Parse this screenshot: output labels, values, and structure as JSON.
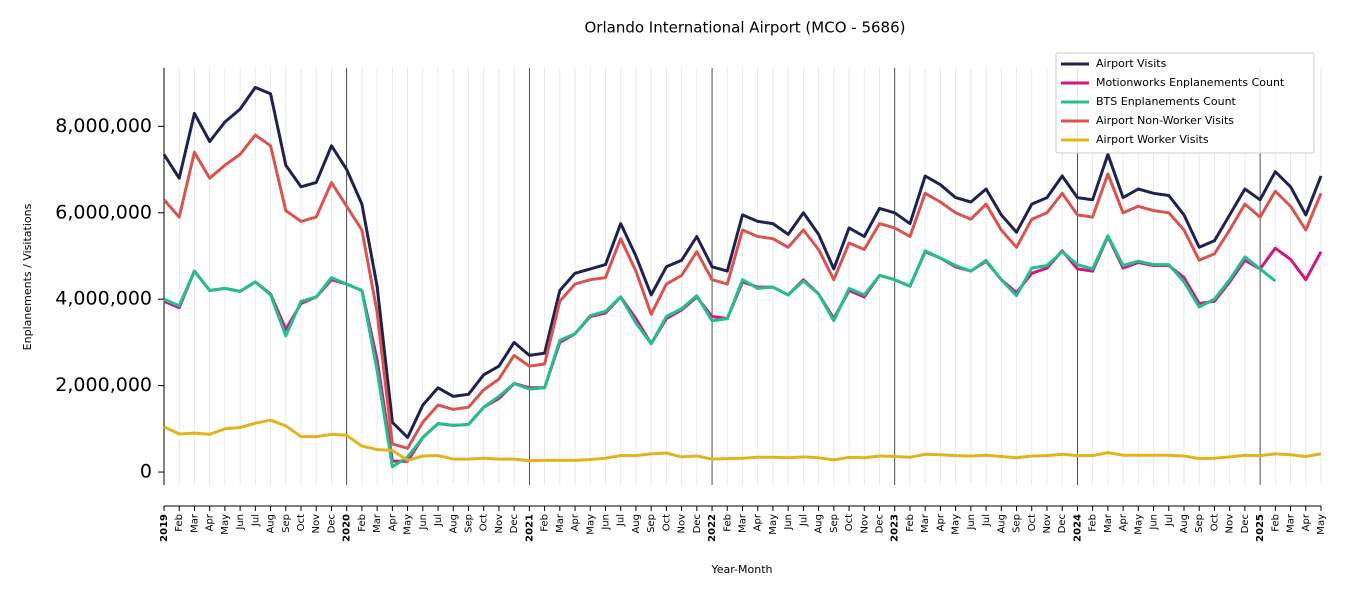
{
  "chart_data": {
    "type": "line",
    "title": "Orlando International Airport (MCO - 5686)",
    "x_label": "Year-Month",
    "y_label": "Enplanements / Visitations",
    "categories": [
      "2019",
      "Feb",
      "Mar",
      "Apr",
      "May",
      "Jun",
      "Jul",
      "Aug",
      "Sep",
      "Oct",
      "Nov",
      "Dec",
      "2020",
      "Feb",
      "Mar",
      "Apr",
      "May",
      "Jun",
      "Jul",
      "Aug",
      "Sep",
      "Oct",
      "Nov",
      "Dec",
      "2021",
      "Feb",
      "Mar",
      "Apr",
      "May",
      "Jun",
      "Jul",
      "Aug",
      "Sep",
      "Oct",
      "Nov",
      "Dec",
      "2022",
      "Feb",
      "Mar",
      "Apr",
      "May",
      "Jun",
      "Jul",
      "Aug",
      "Sep",
      "Oct",
      "Nov",
      "Dec",
      "2023",
      "Feb",
      "Mar",
      "Apr",
      "May",
      "Jun",
      "Jul",
      "Aug",
      "Sep",
      "Oct",
      "Nov",
      "Dec",
      "2024",
      "Feb",
      "Mar",
      "Apr",
      "May",
      "Jun",
      "Jul",
      "Aug",
      "Sep",
      "Oct",
      "Nov",
      "Dec",
      "2025",
      "Feb",
      "Mar",
      "Apr",
      "May"
    ],
    "series": [
      {
        "name": "Airport Visits",
        "color": "#1f2150",
        "values": [
          7350000,
          6800000,
          8300000,
          7650000,
          8100000,
          8400000,
          8900000,
          8750000,
          7100000,
          6600000,
          6700000,
          7550000,
          7000000,
          6200000,
          4300000,
          1150000,
          800000,
          1550000,
          1950000,
          1750000,
          1800000,
          2250000,
          2450000,
          3000000,
          2700000,
          2750000,
          4200000,
          4600000,
          4700000,
          4800000,
          5750000,
          5000000,
          4100000,
          4750000,
          4900000,
          5450000,
          4750000,
          4650000,
          5950000,
          5800000,
          5750000,
          5500000,
          6000000,
          5500000,
          4700000,
          5650000,
          5450000,
          6100000,
          6000000,
          5750000,
          6850000,
          6650000,
          6350000,
          6250000,
          6550000,
          5950000,
          5550000,
          6200000,
          6350000,
          6850000,
          6350000,
          6300000,
          7350000,
          6350000,
          6550000,
          6450000,
          6400000,
          5950000,
          5200000,
          5350000,
          5950000,
          6550000,
          6300000,
          6950000,
          6600000,
          5950000,
          6850000
        ]
      },
      {
        "name": "Motionworks Enplanements Count",
        "color": "#d0177f",
        "values": [
          3950000,
          3800000,
          4650000,
          4200000,
          4250000,
          4180000,
          4400000,
          4120000,
          3300000,
          3900000,
          4050000,
          4450000,
          4350000,
          4200000,
          2600000,
          250000,
          250000,
          800000,
          1120000,
          1080000,
          1100000,
          1500000,
          1700000,
          2050000,
          1950000,
          1950000,
          3000000,
          3200000,
          3600000,
          3680000,
          4050000,
          3550000,
          2970000,
          3550000,
          3750000,
          4050000,
          3600000,
          3550000,
          4400000,
          4280000,
          4280000,
          4100000,
          4450000,
          4120000,
          3550000,
          4200000,
          4050000,
          4550000,
          4450000,
          4300000,
          5100000,
          4950000,
          4750000,
          4650000,
          4880000,
          4450000,
          4150000,
          4600000,
          4720000,
          5120000,
          4700000,
          4650000,
          5450000,
          4720000,
          4850000,
          4780000,
          4780000,
          4500000,
          3900000,
          3950000,
          4400000,
          4900000,
          4700000,
          5180000,
          4920000,
          4450000,
          5100000
        ]
      },
      {
        "name": "BTS Enplanements Count",
        "color": "#22c08e",
        "values": [
          4000000,
          3850000,
          4650000,
          4200000,
          4250000,
          4180000,
          4400000,
          4100000,
          3150000,
          3950000,
          4050000,
          4500000,
          4350000,
          4200000,
          2350000,
          120000,
          350000,
          800000,
          1120000,
          1080000,
          1100000,
          1500000,
          1750000,
          2050000,
          1920000,
          1950000,
          3050000,
          3200000,
          3620000,
          3720000,
          4050000,
          3450000,
          2970000,
          3600000,
          3780000,
          4080000,
          3500000,
          3550000,
          4450000,
          4250000,
          4280000,
          4100000,
          4420000,
          4120000,
          3500000,
          4250000,
          4100000,
          4550000,
          4450000,
          4300000,
          5120000,
          4950000,
          4780000,
          4650000,
          4900000,
          4450000,
          4080000,
          4720000,
          4780000,
          5100000,
          4800000,
          4700000,
          5470000,
          4780000,
          4880000,
          4800000,
          4800000,
          4400000,
          3820000,
          4000000,
          4450000,
          4980000,
          4700000,
          4420000,
          null,
          null,
          null
        ]
      },
      {
        "name": "Airport Non-Worker Visits",
        "color": "#d9534f",
        "values": [
          6300000,
          5900000,
          7400000,
          6800000,
          7100000,
          7350000,
          7800000,
          7550000,
          6050000,
          5800000,
          5900000,
          6700000,
          6150000,
          5600000,
          3700000,
          650000,
          550000,
          1150000,
          1550000,
          1450000,
          1500000,
          1900000,
          2150000,
          2700000,
          2450000,
          2500000,
          3950000,
          4350000,
          4450000,
          4500000,
          5400000,
          4650000,
          3650000,
          4350000,
          4550000,
          5100000,
          4450000,
          4350000,
          5600000,
          5450000,
          5400000,
          5200000,
          5600000,
          5150000,
          4450000,
          5300000,
          5150000,
          5750000,
          5650000,
          5450000,
          6450000,
          6250000,
          6000000,
          5850000,
          6200000,
          5600000,
          5200000,
          5850000,
          6000000,
          6450000,
          5950000,
          5900000,
          6900000,
          6000000,
          6150000,
          6050000,
          6000000,
          5600000,
          4900000,
          5050000,
          5600000,
          6200000,
          5900000,
          6500000,
          6150000,
          5600000,
          6450000
        ]
      },
      {
        "name": "Airport Worker Visits",
        "color": "#e0b41c",
        "values": [
          1050000,
          880000,
          900000,
          870000,
          1000000,
          1030000,
          1130000,
          1200000,
          1070000,
          820000,
          820000,
          870000,
          850000,
          600000,
          520000,
          500000,
          270000,
          370000,
          380000,
          300000,
          300000,
          320000,
          300000,
          300000,
          260000,
          270000,
          270000,
          270000,
          290000,
          320000,
          380000,
          380000,
          420000,
          440000,
          350000,
          370000,
          300000,
          310000,
          320000,
          340000,
          340000,
          330000,
          350000,
          330000,
          280000,
          340000,
          330000,
          370000,
          360000,
          340000,
          410000,
          400000,
          380000,
          370000,
          390000,
          360000,
          330000,
          370000,
          380000,
          410000,
          380000,
          380000,
          450000,
          390000,
          390000,
          390000,
          390000,
          370000,
          310000,
          320000,
          350000,
          390000,
          380000,
          420000,
          400000,
          360000,
          420000
        ]
      }
    ],
    "ylim": [
      -300000,
      9350000
    ],
    "yticks": [
      0,
      {
        "value": 2000000,
        "label": "2,000,000"
      },
      {
        "value": 4000000,
        "label": "4,000,000"
      },
      {
        "value": 6000000,
        "label": "6,000,000"
      },
      {
        "value": 8000000,
        "label": "8,000,000"
      }
    ],
    "grid": true,
    "legend": "upper right"
  }
}
